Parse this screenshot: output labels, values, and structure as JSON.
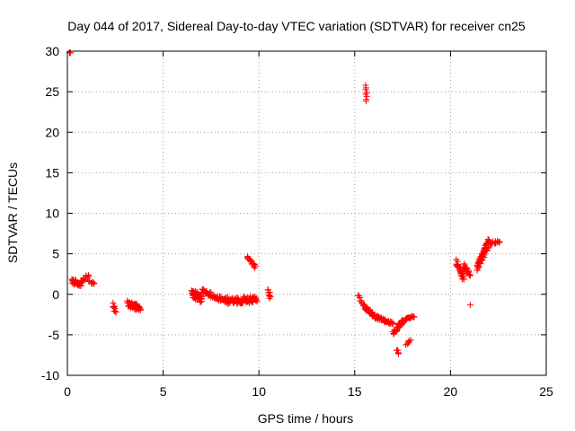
{
  "chart_data": {
    "type": "scatter",
    "title": "Day 044 of 2017, Sidereal Day-to-day VTEC variation (SDTVAR) for receiver cn25",
    "xlabel": "GPS time / hours",
    "ylabel": "SDTVAR / TECUs",
    "xlim": [
      0,
      25
    ],
    "ylim": [
      -10,
      30
    ],
    "xticks": [
      0,
      5,
      10,
      15,
      20,
      25
    ],
    "yticks": [
      -10,
      -5,
      0,
      5,
      10,
      15,
      20,
      25,
      30
    ],
    "grid": true,
    "marker": "+",
    "marker_color": "#ff0000",
    "clusters": [
      {
        "x_start": 0.1,
        "x_end": 0.15,
        "y_start": 29.8,
        "y_end": 29.8,
        "spread": 0.1,
        "n": 3
      },
      {
        "x_start": 0.25,
        "x_end": 0.7,
        "y_start": 1.7,
        "y_end": 1.2,
        "spread": 0.6,
        "n": 30
      },
      {
        "x_start": 0.7,
        "x_end": 1.1,
        "y_start": 1.5,
        "y_end": 2.3,
        "spread": 0.4,
        "n": 14
      },
      {
        "x_start": 1.1,
        "x_end": 1.4,
        "y_start": 1.6,
        "y_end": 1.3,
        "spread": 0.3,
        "n": 8
      },
      {
        "x_start": 2.4,
        "x_end": 2.5,
        "y_start": -1.2,
        "y_end": -2.4,
        "spread": 0.4,
        "n": 10
      },
      {
        "x_start": 3.15,
        "x_end": 3.8,
        "y_start": -1.2,
        "y_end": -1.8,
        "spread": 0.8,
        "n": 45
      },
      {
        "x_start": 6.5,
        "x_end": 7.0,
        "y_start": 0.2,
        "y_end": -0.6,
        "spread": 1.0,
        "n": 45
      },
      {
        "x_start": 7.0,
        "x_end": 8.3,
        "y_start": 0.4,
        "y_end": -0.8,
        "spread": 0.6,
        "n": 50
      },
      {
        "x_start": 8.3,
        "x_end": 9.9,
        "y_start": -0.8,
        "y_end": -0.6,
        "spread": 0.9,
        "n": 75
      },
      {
        "x_start": 9.4,
        "x_end": 9.8,
        "y_start": 4.7,
        "y_end": 3.3,
        "spread": 0.3,
        "n": 18
      },
      {
        "x_start": 10.5,
        "x_end": 10.6,
        "y_start": 0.5,
        "y_end": -0.5,
        "spread": 0.4,
        "n": 8
      },
      {
        "x_start": 15.6,
        "x_end": 15.6,
        "y_start": 25.8,
        "y_end": 23.8,
        "spread": 0.1,
        "n": 8
      },
      {
        "x_start": 15.2,
        "x_end": 15.5,
        "y_start": -0.2,
        "y_end": -1.6,
        "spread": 0.4,
        "n": 10
      },
      {
        "x_start": 15.5,
        "x_end": 16.1,
        "y_start": -1.5,
        "y_end": -2.8,
        "spread": 0.5,
        "n": 40
      },
      {
        "x_start": 16.1,
        "x_end": 17.0,
        "y_start": -2.8,
        "y_end": -3.6,
        "spread": 0.4,
        "n": 40
      },
      {
        "x_start": 17.0,
        "x_end": 17.5,
        "y_start": -4.8,
        "y_end": -3.4,
        "spread": 0.5,
        "n": 28
      },
      {
        "x_start": 17.5,
        "x_end": 18.1,
        "y_start": -3.3,
        "y_end": -2.7,
        "spread": 0.3,
        "n": 20
      },
      {
        "x_start": 17.2,
        "x_end": 17.3,
        "y_start": -6.8,
        "y_end": -7.3,
        "spread": 0.3,
        "n": 6
      },
      {
        "x_start": 17.7,
        "x_end": 17.9,
        "y_start": -6.3,
        "y_end": -5.6,
        "spread": 0.2,
        "n": 6
      },
      {
        "x_start": 20.3,
        "x_end": 20.7,
        "y_start": 4.0,
        "y_end": 2.0,
        "spread": 0.8,
        "n": 32
      },
      {
        "x_start": 20.7,
        "x_end": 21.0,
        "y_start": 3.5,
        "y_end": 2.5,
        "spread": 0.7,
        "n": 18
      },
      {
        "x_start": 21.0,
        "x_end": 21.0,
        "y_start": -1.3,
        "y_end": -1.3,
        "spread": 0.05,
        "n": 1
      },
      {
        "x_start": 21.4,
        "x_end": 22.0,
        "y_start": 3.3,
        "y_end": 6.4,
        "spread": 1.0,
        "n": 55
      },
      {
        "x_start": 22.0,
        "x_end": 22.6,
        "y_start": 6.3,
        "y_end": 6.5,
        "spread": 0.3,
        "n": 16
      }
    ]
  }
}
